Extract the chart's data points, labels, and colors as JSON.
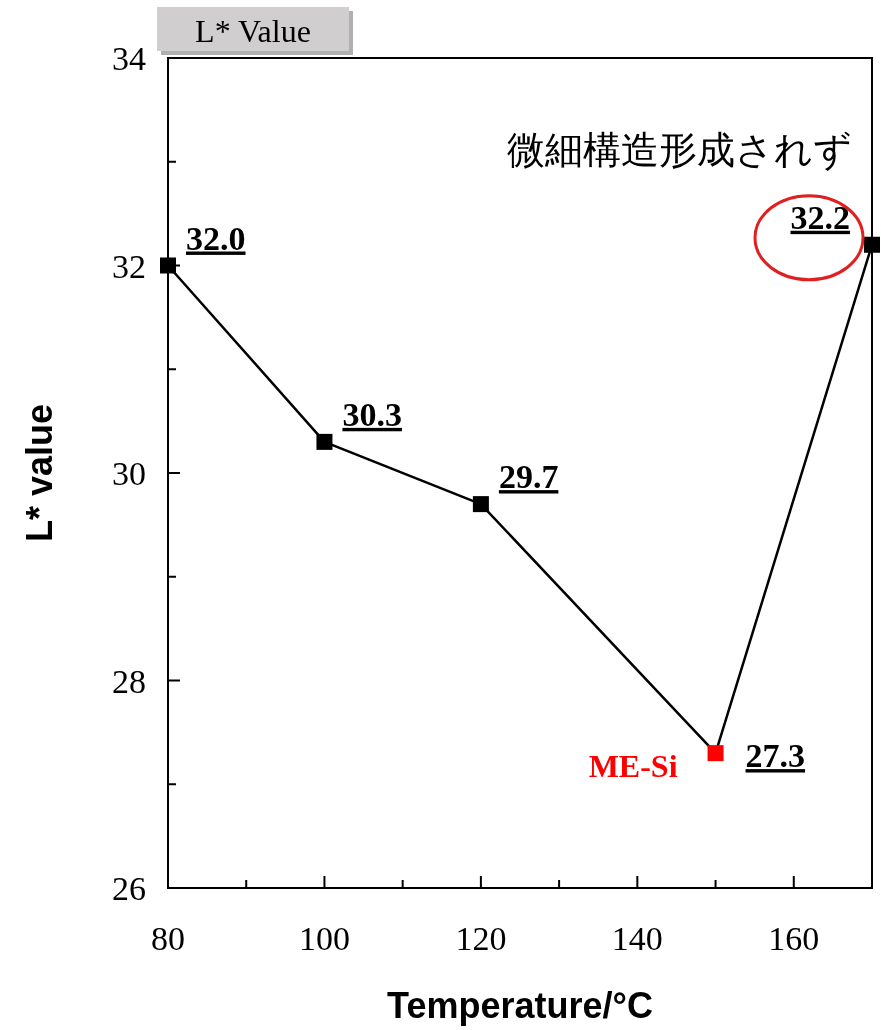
{
  "chart_data": {
    "type": "line",
    "xlabel": "Temperature/°C",
    "ylabel": "L* value",
    "marker": "square",
    "line_style": "solid",
    "x": [
      80,
      100,
      120,
      150,
      170
    ],
    "series": [
      {
        "color": "#000000",
        "colors": [
          "#000000",
          "#000000",
          "#000000",
          "#ff0000",
          "#000000"
        ],
        "values": [
          32.0,
          30.3,
          29.7,
          27.3,
          32.2
        ],
        "value_labels": [
          "32.0",
          "30.3",
          "29.7",
          "27.3",
          "32.2"
        ]
      }
    ],
    "xlim": [
      80,
      170
    ],
    "ylim": [
      26,
      34
    ],
    "xticks": [
      80,
      {
        "value": 90,
        "label": null
      },
      100,
      {
        "value": 110,
        "label": null
      },
      120,
      {
        "value": 130,
        "label": null
      },
      140,
      {
        "value": 150,
        "label": null
      },
      160
    ],
    "yticks": [
      26,
      {
        "value": 27,
        "label": null
      },
      28,
      {
        "value": 29,
        "label": null
      },
      30,
      {
        "value": 31,
        "label": null
      },
      32,
      {
        "value": 33,
        "label": null
      },
      34
    ],
    "annotations": [
      "L* Value",
      {
        "text": "ME-Si",
        "x": 150,
        "y": 27.3
      },
      {
        "text": "微細構造形成されず",
        "x": 170,
        "y": 32.2
      }
    ]
  }
}
